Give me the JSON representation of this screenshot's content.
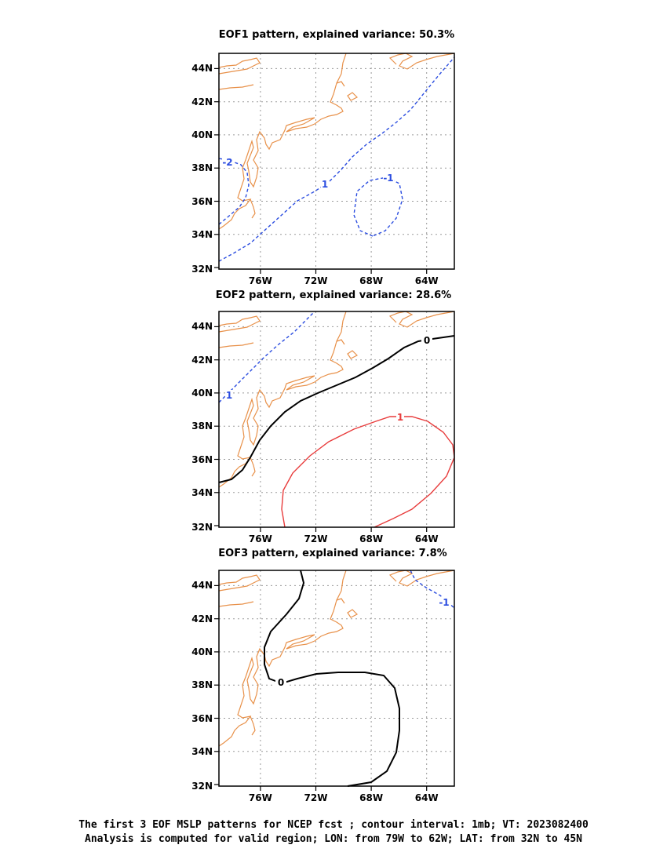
{
  "panels": [
    {
      "title": "EOF1 pattern, explained variance: 50.3%"
    },
    {
      "title": "EOF2 pattern, explained variance: 28.6%"
    },
    {
      "title": "EOF3 pattern, explained variance: 7.8%"
    }
  ],
  "axes": {
    "lat_labels": [
      "44N",
      "42N",
      "40N",
      "38N",
      "36N",
      "34N",
      "32N"
    ],
    "lon_labels": [
      "76W",
      "72W",
      "68W",
      "64W"
    ]
  },
  "contour_labels": {
    "eof1": [
      "-2",
      "1",
      "-1"
    ],
    "eof2": [
      "1",
      "0",
      "1"
    ],
    "eof3": [
      "0",
      "-1"
    ]
  },
  "colors": {
    "coastline": "#e8914a",
    "negative_contour": "#2b4de0",
    "positive_contour": "#e83c3c",
    "zero_contour": "#000000",
    "grid": "#9a9a9a"
  },
  "footer": {
    "line1": "The first 3 EOF MSLP patterns for NCEP fcst ; contour interval: 1mb; VT: 2023082400",
    "line2": "Analysis is computed for valid region; LON: from 79W to 62W; LAT: from 32N to 45N"
  }
}
